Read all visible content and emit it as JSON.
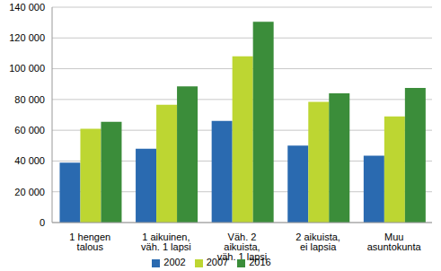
{
  "chart_data": {
    "type": "bar",
    "categories": [
      "1 hengen talous",
      "1 aikuinen, väh. 1 lapsi",
      "Väh. 2 aikuista, väh. 1 lapsi",
      "2 aikuista, ei lapsia",
      "Muu asuntokunta"
    ],
    "series": [
      {
        "name": "2002",
        "color": "#2a6ab0",
        "values": [
          39000,
          48000,
          66000,
          50000,
          43500
        ]
      },
      {
        "name": "2007",
        "color": "#bdd632",
        "values": [
          61000,
          76500,
          108000,
          78500,
          69000
        ]
      },
      {
        "name": "2016",
        "color": "#3b8d3a",
        "values": [
          65500,
          88500,
          130500,
          84000,
          87500
        ]
      }
    ],
    "ylim": [
      0,
      140000
    ],
    "yticks": [
      0,
      {
        "value": 20000,
        "label": "20 000"
      },
      {
        "value": 40000,
        "label": "40 000"
      },
      {
        "value": 60000,
        "label": "60 000"
      },
      {
        "value": 80000,
        "label": "80 000"
      },
      {
        "value": 100000,
        "label": "100 000"
      },
      {
        "value": 120000,
        "label": "120 000"
      },
      {
        "value": 140000,
        "label": "140 000"
      }
    ],
    "grid": true,
    "legend": "bottom"
  }
}
